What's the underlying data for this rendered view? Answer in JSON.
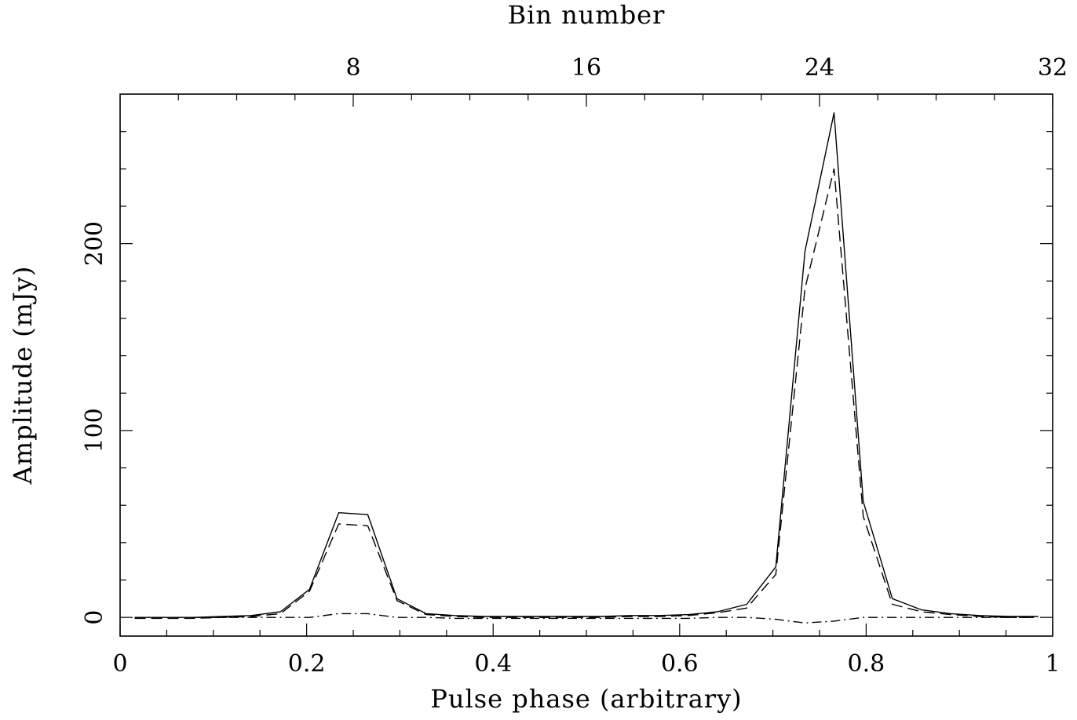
{
  "chart_data": {
    "type": "line",
    "title": "",
    "xlabel": "Pulse phase (arbitrary)",
    "ylabel": "Amplitude (mJy)",
    "top_xlabel": "Bin number",
    "xlim": [
      0,
      1
    ],
    "ylim": [
      -10,
      280
    ],
    "xticks": [
      0,
      0.2,
      0.4,
      0.6,
      0.8,
      1
    ],
    "xtick_labels": [
      "0",
      "0.2",
      "0.4",
      "0.6",
      "0.8",
      "1"
    ],
    "yticks": [
      0,
      100,
      200
    ],
    "ytick_labels": [
      "0",
      "100",
      "200"
    ],
    "top_ticks_bins": [
      8,
      16,
      24,
      32
    ],
    "top_tick_labels": [
      "8",
      "16",
      "24",
      "32"
    ],
    "grid": false,
    "legend": "none",
    "x": [
      0.0156,
      0.0469,
      0.0781,
      0.1094,
      0.1406,
      0.1719,
      0.2031,
      0.2344,
      0.2656,
      0.2969,
      0.3281,
      0.3594,
      0.3906,
      0.4219,
      0.4531,
      0.4844,
      0.5156,
      0.5469,
      0.5781,
      0.6094,
      0.6406,
      0.6719,
      0.7031,
      0.7344,
      0.7656,
      0.7969,
      0.8281,
      0.8594,
      0.8906,
      0.9219,
      0.9531,
      0.9844
    ],
    "series": [
      {
        "style": "solid",
        "values": [
          0,
          0,
          0,
          0.5,
          1,
          3,
          15,
          56,
          55,
          10,
          2,
          1,
          0.5,
          0.5,
          0.5,
          0.5,
          0.5,
          1,
          1,
          1.5,
          3,
          7,
          27,
          196,
          270,
          62,
          10,
          4,
          2,
          1,
          0.5,
          0.5
        ]
      },
      {
        "style": "dashed",
        "values": [
          -0.5,
          -0.5,
          -0.5,
          0,
          0.5,
          2,
          14,
          50,
          49,
          9,
          1.5,
          0.5,
          0,
          0,
          0,
          0,
          0,
          0.5,
          0.5,
          1,
          2.5,
          5,
          23,
          176,
          240,
          54,
          7,
          3,
          1.5,
          0.5,
          0,
          0
        ]
      },
      {
        "style": "dashdot",
        "values": [
          0,
          0,
          0,
          0,
          0,
          0,
          0,
          2,
          2,
          0,
          0,
          -0.5,
          -0.5,
          -0.5,
          -0.5,
          -0.5,
          -0.5,
          -0.5,
          -0.5,
          -0.5,
          0,
          0,
          -1,
          -3,
          -2,
          0,
          0,
          0,
          0,
          0,
          0,
          0
        ]
      }
    ]
  }
}
